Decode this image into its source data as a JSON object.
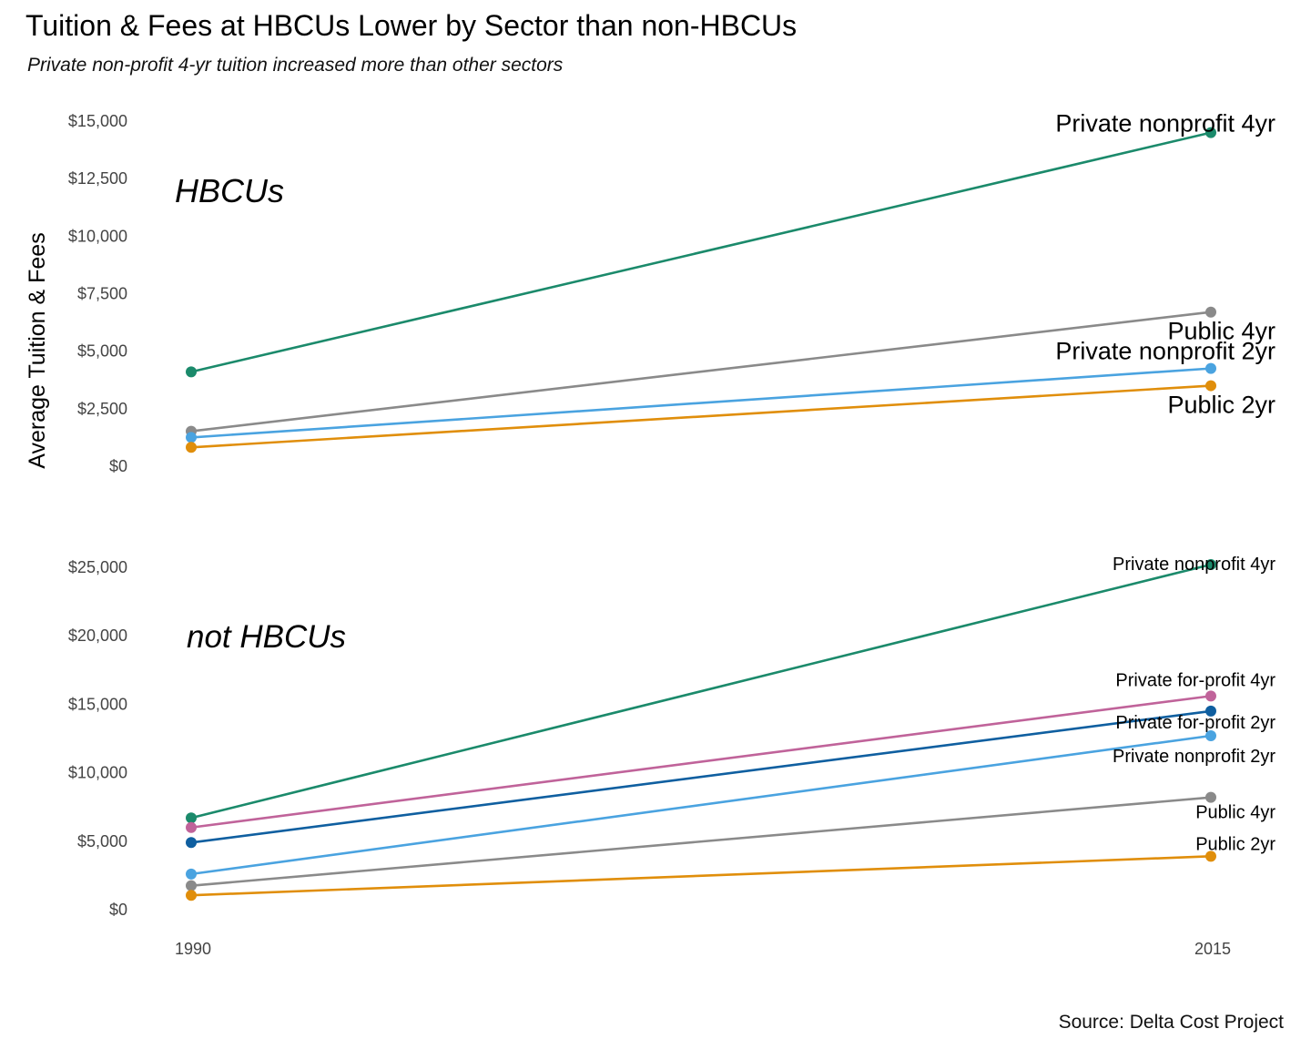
{
  "title": "Tuition & Fees at HBCUs Lower by Sector than non-HBCUs",
  "subtitle": "Private non-profit 4-yr tuition increased more than other sectors",
  "caption": "Source: Delta Cost Project",
  "colors": {
    "private_nonprofit_4yr": "#1b8a6b",
    "public_4yr": "#8a8a8a",
    "private_nonprofit_2yr": "#4aa3e0",
    "public_2yr": "#e08e0b",
    "private_forprofit_4yr": "#c0639a",
    "private_forprofit_2yr": "#0f5fa0"
  },
  "chart_data": [
    {
      "type": "line",
      "panel": "HBCUs",
      "ylabel": "Average Tuition & Fees",
      "x": [
        "1990",
        "2015"
      ],
      "ylim": [
        0,
        15000
      ],
      "yticks": [
        "$0",
        "$2,500",
        "$5,000",
        "$7,500",
        "$10,000",
        "$12,500",
        "$15,000"
      ],
      "series": [
        {
          "name": "Private nonprofit 4yr",
          "color": "#1b8a6b",
          "values": [
            4100,
            14500
          ]
        },
        {
          "name": "Public 4yr",
          "color": "#8a8a8a",
          "values": [
            1520,
            6700
          ]
        },
        {
          "name": "Private nonprofit 2yr",
          "color": "#4aa3e0",
          "values": [
            1250,
            4250
          ]
        },
        {
          "name": "Public 2yr",
          "color": "#e08e0b",
          "values": [
            820,
            3500
          ]
        }
      ]
    },
    {
      "type": "line",
      "panel": "not HBCUs",
      "x": [
        "1990",
        "2015"
      ],
      "ylim": [
        0,
        25000
      ],
      "yticks": [
        "$0",
        "$5,000",
        "$10,000",
        "$15,000",
        "$20,000",
        "$25,000"
      ],
      "xticks": [
        "1990",
        "2015"
      ],
      "series": [
        {
          "name": "Private nonprofit 4yr",
          "color": "#1b8a6b",
          "values": [
            6700,
            25200
          ]
        },
        {
          "name": "Private for-profit 4yr",
          "color": "#c0639a",
          "values": [
            6000,
            15600
          ]
        },
        {
          "name": "Private for-profit 2yr",
          "color": "#0f5fa0",
          "values": [
            4900,
            14500
          ]
        },
        {
          "name": "Private nonprofit 2yr",
          "color": "#4aa3e0",
          "values": [
            2600,
            12700
          ]
        },
        {
          "name": "Public 4yr",
          "color": "#8a8a8a",
          "values": [
            1750,
            8200
          ]
        },
        {
          "name": "Public 2yr",
          "color": "#e08e0b",
          "values": [
            1050,
            3900
          ]
        }
      ]
    }
  ]
}
